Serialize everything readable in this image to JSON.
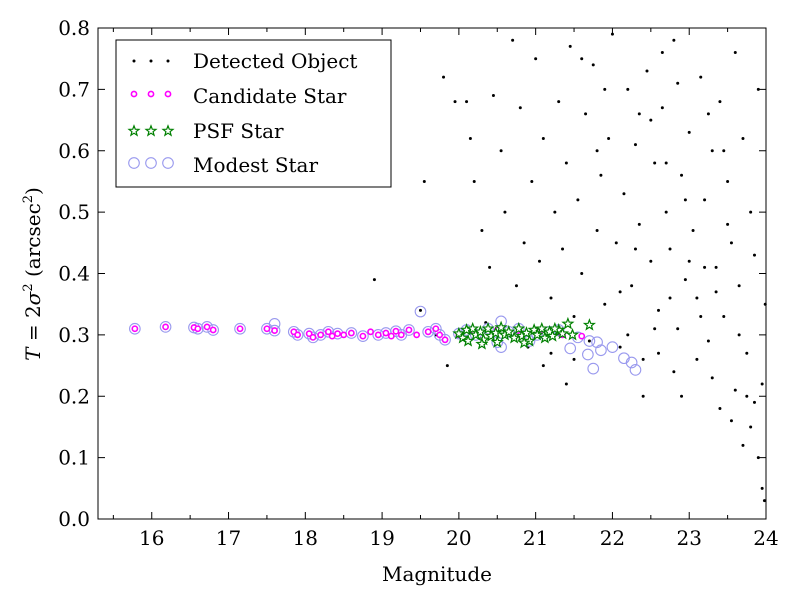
{
  "chart_data": {
    "type": "scatter",
    "title": "",
    "xlabel": "Magnitude",
    "ylabel": {
      "prefix": "T",
      "equals": " = 2",
      "sigma": "σ",
      "sq": "2",
      "open": " (arcsec",
      "unit_sq": "2",
      "close": ")"
    },
    "xlim": [
      15.3,
      24
    ],
    "ylim": [
      0.0,
      0.8
    ],
    "xticks": [
      "16",
      "17",
      "18",
      "19",
      "20",
      "21",
      "22",
      "23",
      "24"
    ],
    "yticks": [
      "0.0",
      "0.1",
      "0.2",
      "0.3",
      "0.4",
      "0.5",
      "0.6",
      "0.7",
      "0.8"
    ],
    "legend_position": "top-left",
    "legend": [
      {
        "label": "Detected Object",
        "marker": "dot",
        "color": "#000000"
      },
      {
        "label": "Candidate Star",
        "marker": "small-circle",
        "color": "#ff00ff"
      },
      {
        "label": "PSF Star",
        "marker": "star",
        "color": "#008000"
      },
      {
        "label": "Modest Star",
        "marker": "open-circle",
        "color": "#9999ee"
      }
    ],
    "series": [
      {
        "name": "Detected Object",
        "style": "dot",
        "color": "#000000",
        "points": [
          [
            19.5,
            0.34
          ],
          [
            18.9,
            0.39
          ],
          [
            19.55,
            0.55
          ],
          [
            19.7,
            0.3
          ],
          [
            19.8,
            0.72
          ],
          [
            19.95,
            0.68
          ],
          [
            19.85,
            0.25
          ],
          [
            20.1,
            0.68
          ],
          [
            20.15,
            0.62
          ],
          [
            20.2,
            0.55
          ],
          [
            20.3,
            0.47
          ],
          [
            20.35,
            0.32
          ],
          [
            20.45,
            0.69
          ],
          [
            20.55,
            0.6
          ],
          [
            20.6,
            0.5
          ],
          [
            20.4,
            0.41
          ],
          [
            20.7,
            0.78
          ],
          [
            20.75,
            0.38
          ],
          [
            20.8,
            0.67
          ],
          [
            20.85,
            0.45
          ],
          [
            20.95,
            0.55
          ],
          [
            21.0,
            0.75
          ],
          [
            21.05,
            0.42
          ],
          [
            21.1,
            0.62
          ],
          [
            21.2,
            0.36
          ],
          [
            21.25,
            0.5
          ],
          [
            21.3,
            0.68
          ],
          [
            21.35,
            0.44
          ],
          [
            21.4,
            0.58
          ],
          [
            21.45,
            0.77
          ],
          [
            21.5,
            0.33
          ],
          [
            21.55,
            0.52
          ],
          [
            21.6,
            0.4
          ],
          [
            21.65,
            0.66
          ],
          [
            21.7,
            0.29
          ],
          [
            21.75,
            0.74
          ],
          [
            21.8,
            0.47
          ],
          [
            21.85,
            0.56
          ],
          [
            21.9,
            0.35
          ],
          [
            21.95,
            0.62
          ],
          [
            22.0,
            0.79
          ],
          [
            22.05,
            0.45
          ],
          [
            22.1,
            0.28
          ],
          [
            22.15,
            0.53
          ],
          [
            22.2,
            0.7
          ],
          [
            22.25,
            0.38
          ],
          [
            22.3,
            0.61
          ],
          [
            22.35,
            0.48
          ],
          [
            22.4,
            0.26
          ],
          [
            22.45,
            0.73
          ],
          [
            22.5,
            0.42
          ],
          [
            22.55,
            0.58
          ],
          [
            22.6,
            0.34
          ],
          [
            22.65,
            0.67
          ],
          [
            22.7,
            0.5
          ],
          [
            22.75,
            0.44
          ],
          [
            22.8,
            0.78
          ],
          [
            22.85,
            0.31
          ],
          [
            22.9,
            0.56
          ],
          [
            22.95,
            0.39
          ],
          [
            23.0,
            0.63
          ],
          [
            23.05,
            0.47
          ],
          [
            23.1,
            0.36
          ],
          [
            23.15,
            0.72
          ],
          [
            23.2,
            0.52
          ],
          [
            23.25,
            0.29
          ],
          [
            23.3,
            0.6
          ],
          [
            23.35,
            0.41
          ],
          [
            23.4,
            0.68
          ],
          [
            23.45,
            0.33
          ],
          [
            23.5,
            0.55
          ],
          [
            23.55,
            0.45
          ],
          [
            23.6,
            0.76
          ],
          [
            23.65,
            0.38
          ],
          [
            23.7,
            0.62
          ],
          [
            23.75,
            0.27
          ],
          [
            23.8,
            0.5
          ],
          [
            23.85,
            0.43
          ],
          [
            23.9,
            0.7
          ],
          [
            23.95,
            0.22
          ],
          [
            23.99,
            0.35
          ],
          [
            23.1,
            0.26
          ],
          [
            23.4,
            0.18
          ],
          [
            23.6,
            0.21
          ],
          [
            23.8,
            0.15
          ],
          [
            23.9,
            0.1
          ],
          [
            23.95,
            0.05
          ],
          [
            23.98,
            0.03
          ],
          [
            23.7,
            0.12
          ],
          [
            23.85,
            0.19
          ],
          [
            22.8,
            0.24
          ],
          [
            22.6,
            0.27
          ],
          [
            22.4,
            0.2
          ],
          [
            22.2,
            0.3
          ],
          [
            23.3,
            0.23
          ],
          [
            23.55,
            0.16
          ],
          [
            23.75,
            0.2
          ],
          [
            22.9,
            0.2
          ],
          [
            21.0,
            0.31
          ],
          [
            20.9,
            0.28
          ],
          [
            21.2,
            0.27
          ],
          [
            21.3,
            0.3
          ],
          [
            21.1,
            0.25
          ],
          [
            21.4,
            0.22
          ],
          [
            21.5,
            0.26
          ],
          [
            22.7,
            0.58
          ],
          [
            22.95,
            0.52
          ],
          [
            23.2,
            0.41
          ],
          [
            23.5,
            0.48
          ],
          [
            22.5,
            0.65
          ],
          [
            21.9,
            0.7
          ],
          [
            23.0,
            0.42
          ],
          [
            22.1,
            0.37
          ],
          [
            22.3,
            0.44
          ],
          [
            22.55,
            0.31
          ],
          [
            22.75,
            0.36
          ],
          [
            23.15,
            0.33
          ],
          [
            23.35,
            0.37
          ],
          [
            23.65,
            0.3
          ],
          [
            23.45,
            0.6
          ],
          [
            23.25,
            0.66
          ],
          [
            22.85,
            0.71
          ],
          [
            22.65,
            0.76
          ],
          [
            22.35,
            0.66
          ],
          [
            21.8,
            0.6
          ],
          [
            21.6,
            0.75
          ]
        ]
      },
      {
        "name": "Candidate Star",
        "style": "small-circle",
        "color": "#ff00ff",
        "points": [
          [
            15.78,
            0.31
          ],
          [
            16.18,
            0.313
          ],
          [
            16.55,
            0.312
          ],
          [
            16.6,
            0.31
          ],
          [
            16.72,
            0.313
          ],
          [
            16.8,
            0.308
          ],
          [
            17.15,
            0.31
          ],
          [
            17.5,
            0.31
          ],
          [
            17.6,
            0.307
          ],
          [
            17.85,
            0.305
          ],
          [
            17.9,
            0.3
          ],
          [
            18.05,
            0.302
          ],
          [
            18.1,
            0.296
          ],
          [
            18.2,
            0.3
          ],
          [
            18.3,
            0.305
          ],
          [
            18.35,
            0.298
          ],
          [
            18.42,
            0.302
          ],
          [
            18.5,
            0.3
          ],
          [
            18.6,
            0.303
          ],
          [
            18.75,
            0.298
          ],
          [
            18.85,
            0.305
          ],
          [
            18.95,
            0.3
          ],
          [
            19.05,
            0.303
          ],
          [
            19.12,
            0.298
          ],
          [
            19.18,
            0.306
          ],
          [
            19.25,
            0.3
          ],
          [
            19.35,
            0.308
          ],
          [
            19.45,
            0.3
          ],
          [
            19.6,
            0.305
          ],
          [
            19.7,
            0.31
          ],
          [
            19.75,
            0.3
          ],
          [
            19.82,
            0.292
          ],
          [
            20.0,
            0.3
          ],
          [
            20.2,
            0.305
          ],
          [
            20.5,
            0.308
          ],
          [
            20.8,
            0.3
          ],
          [
            21.05,
            0.305
          ],
          [
            21.35,
            0.3
          ],
          [
            21.6,
            0.298
          ]
        ]
      },
      {
        "name": "PSF Star",
        "style": "star",
        "color": "#008000",
        "points": [
          [
            20.0,
            0.302
          ],
          [
            20.05,
            0.295
          ],
          [
            20.1,
            0.308
          ],
          [
            20.12,
            0.29
          ],
          [
            20.18,
            0.31
          ],
          [
            20.22,
            0.3
          ],
          [
            20.28,
            0.305
          ],
          [
            20.32,
            0.292
          ],
          [
            20.38,
            0.31
          ],
          [
            20.42,
            0.298
          ],
          [
            20.48,
            0.303
          ],
          [
            20.5,
            0.288
          ],
          [
            20.55,
            0.312
          ],
          [
            20.6,
            0.3
          ],
          [
            20.65,
            0.305
          ],
          [
            20.72,
            0.295
          ],
          [
            20.78,
            0.31
          ],
          [
            20.82,
            0.298
          ],
          [
            20.88,
            0.303
          ],
          [
            20.92,
            0.29
          ],
          [
            20.98,
            0.308
          ],
          [
            21.02,
            0.3
          ],
          [
            21.08,
            0.31
          ],
          [
            21.12,
            0.295
          ],
          [
            21.18,
            0.305
          ],
          [
            21.22,
            0.298
          ],
          [
            21.3,
            0.308
          ],
          [
            21.35,
            0.302
          ],
          [
            21.42,
            0.318
          ],
          [
            21.48,
            0.3
          ],
          [
            21.7,
            0.316
          ],
          [
            20.3,
            0.285
          ],
          [
            20.85,
            0.287
          ],
          [
            21.25,
            0.31
          ]
        ]
      },
      {
        "name": "Modest Star",
        "style": "open-circle",
        "color": "#9999ee",
        "points": [
          [
            15.78,
            0.31
          ],
          [
            16.18,
            0.313
          ],
          [
            16.55,
            0.312
          ],
          [
            16.6,
            0.31
          ],
          [
            16.72,
            0.313
          ],
          [
            16.8,
            0.308
          ],
          [
            17.15,
            0.31
          ],
          [
            17.5,
            0.31
          ],
          [
            17.6,
            0.307
          ],
          [
            17.6,
            0.318
          ],
          [
            17.85,
            0.305
          ],
          [
            17.9,
            0.3
          ],
          [
            18.05,
            0.302
          ],
          [
            18.1,
            0.296
          ],
          [
            18.2,
            0.3
          ],
          [
            18.3,
            0.305
          ],
          [
            18.42,
            0.302
          ],
          [
            18.6,
            0.303
          ],
          [
            18.75,
            0.298
          ],
          [
            18.95,
            0.3
          ],
          [
            19.05,
            0.303
          ],
          [
            19.18,
            0.306
          ],
          [
            19.25,
            0.3
          ],
          [
            19.35,
            0.308
          ],
          [
            19.5,
            0.338
          ],
          [
            19.6,
            0.305
          ],
          [
            19.7,
            0.31
          ],
          [
            19.75,
            0.3
          ],
          [
            19.82,
            0.292
          ],
          [
            20.0,
            0.302
          ],
          [
            20.1,
            0.308
          ],
          [
            20.22,
            0.3
          ],
          [
            20.38,
            0.31
          ],
          [
            20.5,
            0.288
          ],
          [
            20.55,
            0.322
          ],
          [
            20.55,
            0.28
          ],
          [
            20.65,
            0.305
          ],
          [
            20.78,
            0.31
          ],
          [
            20.92,
            0.29
          ],
          [
            21.02,
            0.3
          ],
          [
            21.18,
            0.305
          ],
          [
            21.3,
            0.308
          ],
          [
            21.45,
            0.278
          ],
          [
            21.55,
            0.296
          ],
          [
            21.68,
            0.268
          ],
          [
            21.75,
            0.245
          ],
          [
            21.8,
            0.288
          ],
          [
            21.85,
            0.275
          ],
          [
            22.0,
            0.28
          ],
          [
            22.15,
            0.262
          ],
          [
            22.25,
            0.255
          ],
          [
            22.3,
            0.243
          ],
          [
            21.7,
            0.29
          ]
        ]
      }
    ]
  }
}
